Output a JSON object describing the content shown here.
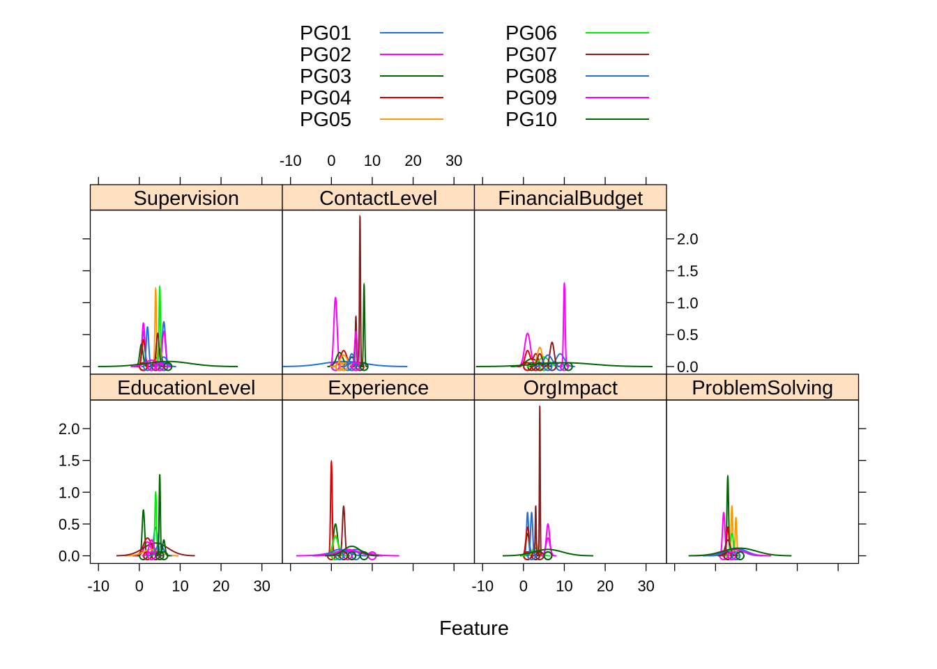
{
  "chart_data": {
    "type": "line",
    "xlabel": "Feature",
    "ylabel": "",
    "xlim": [
      -12,
      35
    ],
    "ylim": [
      -0.12,
      2.45
    ],
    "x_ticks": [
      -10,
      0,
      10,
      20,
      30
    ],
    "x_tick_labels": [
      "-10",
      "0",
      "10",
      "20",
      "30"
    ],
    "y_ticks": [
      0.0,
      0.5,
      1.0,
      1.5,
      2.0
    ],
    "y_tick_labels": [
      "0.0",
      "0.5",
      "1.0",
      "1.5",
      "2.0"
    ],
    "legend_position": "top",
    "series": [
      {
        "name": "PG01",
        "color": "#1f6fe0"
      },
      {
        "name": "PG02",
        "color": "#ff00ff"
      },
      {
        "name": "PG03",
        "color": "#006400"
      },
      {
        "name": "PG04",
        "color": "#dd0000"
      },
      {
        "name": "PG05",
        "color": "#ff9900"
      },
      {
        "name": "PG06",
        "color": "#00ee00"
      },
      {
        "name": "PG07",
        "color": "#8b1a1a"
      },
      {
        "name": "PG08",
        "color": "#1f6fe0"
      },
      {
        "name": "PG09",
        "color": "#ff00ff"
      },
      {
        "name": "PG10",
        "color": "#006400"
      }
    ],
    "panels": [
      {
        "name": "Supervision",
        "curves": [
          {
            "series": "PG01",
            "peaks": [
              [
                1,
                0.55,
                0.35
              ],
              [
                6,
                0.7,
                0.4
              ]
            ],
            "rug": [
              1,
              6
            ]
          },
          {
            "series": "PG02",
            "peaks": [
              [
                1,
                0.68,
                0.35
              ],
              [
                6,
                0.55,
                0.4
              ]
            ],
            "rug": [
              1,
              6
            ]
          },
          {
            "series": "PG03",
            "peaks": [
              [
                0.5,
                0.35,
                0.4
              ],
              [
                4,
                0.15,
                0.5
              ]
            ],
            "rug": [
              1,
              4
            ]
          },
          {
            "series": "PG04",
            "peaks": [
              [
                1,
                0.42,
                0.4
              ],
              [
                5,
                0.28,
                0.45
              ]
            ],
            "rug": [
              1,
              5
            ]
          },
          {
            "series": "PG05",
            "peaks": [
              [
                4,
                1.22,
                0.18
              ]
            ],
            "rug": [
              4
            ]
          },
          {
            "series": "PG06",
            "peaks": [
              [
                5,
                1.25,
                0.18
              ]
            ],
            "rug": [
              5
            ]
          },
          {
            "series": "PG07",
            "peaks": [
              [
                4.5,
                0.52,
                0.35
              ]
            ],
            "rug": [
              4,
              5
            ]
          },
          {
            "series": "PG08",
            "peaks": [
              [
                2,
                0.62,
                0.3
              ],
              [
                6,
                0.15,
                0.8
              ]
            ],
            "rug": [
              2,
              6
            ]
          },
          {
            "series": "PG09",
            "peaks": [
              [
                3,
                0.1,
                1.5
              ]
            ],
            "rug": [
              3,
              5
            ]
          },
          {
            "series": "PG10",
            "peaks": [
              [
                7,
                0.08,
                5.5
              ]
            ],
            "rug": [
              7
            ]
          }
        ]
      },
      {
        "name": "ContactLevel",
        "curves": [
          {
            "series": "PG01",
            "peaks": [
              [
                3,
                0.08,
                5
              ]
            ],
            "rug": [
              1,
              4
            ]
          },
          {
            "series": "PG02",
            "peaks": [
              [
                1,
                1.08,
                0.4
              ]
            ],
            "rug": [
              1
            ]
          },
          {
            "series": "PG03",
            "peaks": [
              [
                2,
                0.22,
                0.8
              ],
              [
                5,
                0.15,
                0.6
              ]
            ],
            "rug": [
              2,
              5
            ]
          },
          {
            "series": "PG04",
            "peaks": [
              [
                3,
                0.25,
                0.8
              ]
            ],
            "rug": [
              3
            ]
          },
          {
            "series": "PG05",
            "peaks": [
              [
                3,
                0.18,
                0.9
              ]
            ],
            "rug": [
              2,
              3
            ]
          },
          {
            "series": "PG06",
            "peaks": [
              [
                6,
                0.5,
                0.3
              ]
            ],
            "rug": [
              6
            ]
          },
          {
            "series": "PG07",
            "peaks": [
              [
                7,
                2.35,
                0.12
              ],
              [
                6,
                0.78,
                0.15
              ]
            ],
            "rug": [
              6,
              7
            ]
          },
          {
            "series": "PG08",
            "peaks": [
              [
                5,
                0.2,
                0.6
              ]
            ],
            "rug": [
              5
            ]
          },
          {
            "series": "PG09",
            "peaks": [
              [
                6,
                0.55,
                0.3
              ]
            ],
            "rug": [
              6
            ]
          },
          {
            "series": "PG10",
            "peaks": [
              [
                8,
                1.28,
                0.15
              ]
            ],
            "rug": [
              8
            ]
          }
        ]
      },
      {
        "name": "FinancialBudget",
        "curves": [
          {
            "series": "PG01",
            "peaks": [
              [
                9,
                0.2,
                1
              ]
            ],
            "rug": [
              9
            ]
          },
          {
            "series": "PG02",
            "peaks": [
              [
                1,
                0.52,
                0.7
              ]
            ],
            "rug": [
              1
            ]
          },
          {
            "series": "PG03",
            "peaks": [
              [
                2,
                0.12,
                1.5
              ]
            ],
            "rug": [
              2,
              4
            ]
          },
          {
            "series": "PG04",
            "peaks": [
              [
                1,
                0.25,
                0.6
              ],
              [
                3,
                0.2,
                0.6
              ]
            ],
            "rug": [
              1,
              3
            ]
          },
          {
            "series": "PG05",
            "peaks": [
              [
                4,
                0.3,
                0.6
              ]
            ],
            "rug": [
              4
            ]
          },
          {
            "series": "PG06",
            "peaks": [
              [
                5,
                0.15,
                1.2
              ]
            ],
            "rug": [
              5
            ]
          },
          {
            "series": "PG07",
            "peaks": [
              [
                7,
                0.38,
                0.5
              ],
              [
                4,
                0.2,
                0.6
              ]
            ],
            "rug": [
              4,
              7
            ]
          },
          {
            "series": "PG08",
            "peaks": [
              [
                6,
                0.18,
                1
              ]
            ],
            "rug": [
              6
            ]
          },
          {
            "series": "PG09",
            "peaks": [
              [
                10,
                1.3,
                0.2
              ]
            ],
            "rug": [
              10
            ]
          },
          {
            "series": "PG10",
            "peaks": [
              [
                10,
                0.06,
                7
              ]
            ],
            "rug": [
              11
            ]
          }
        ]
      },
      {
        "name": "EducationLevel",
        "curves": [
          {
            "series": "PG01",
            "peaks": [
              [
                4,
                0.45,
                0.5
              ]
            ],
            "rug": [
              4
            ]
          },
          {
            "series": "PG02",
            "peaks": [
              [
                2,
                0.22,
                0.8
              ]
            ],
            "rug": [
              2
            ]
          },
          {
            "series": "PG03",
            "peaks": [
              [
                1,
                0.72,
                0.3
              ]
            ],
            "rug": [
              1
            ]
          },
          {
            "series": "PG04",
            "peaks": [
              [
                2,
                0.28,
                1
              ]
            ],
            "rug": [
              2
            ]
          },
          {
            "series": "PG05",
            "peaks": [
              [
                3,
                0.1,
                2
              ]
            ],
            "rug": [
              3
            ]
          },
          {
            "series": "PG06",
            "peaks": [
              [
                4,
                1.0,
                0.2
              ]
            ],
            "rug": [
              4
            ]
          },
          {
            "series": "PG07",
            "peaks": [
              [
                4,
                0.2,
                3
              ]
            ],
            "rug": [
              4
            ]
          },
          {
            "series": "PG08",
            "peaks": [
              [
                5,
                0.2,
                0.8
              ]
            ],
            "rug": [
              5
            ]
          },
          {
            "series": "PG09",
            "peaks": [
              [
                3,
                0.25,
                0.6
              ]
            ],
            "rug": [
              3
            ]
          },
          {
            "series": "PG10",
            "peaks": [
              [
                5,
                1.28,
                0.15
              ],
              [
                6,
                0.25,
                0.3
              ]
            ],
            "rug": [
              5,
              6
            ]
          }
        ]
      },
      {
        "name": "Experience",
        "curves": [
          {
            "series": "PG01",
            "peaks": [
              [
                6,
                0.1,
                2
              ]
            ],
            "rug": [
              6
            ]
          },
          {
            "series": "PG02",
            "peaks": [
              [
                4,
                0.08,
                4
              ]
            ],
            "rug": [
              4,
              10
            ]
          },
          {
            "series": "PG03",
            "peaks": [
              [
                1,
                0.5,
                0.5
              ]
            ],
            "rug": [
              1
            ]
          },
          {
            "series": "PG04",
            "peaks": [
              [
                0,
                1.48,
                0.2
              ]
            ],
            "rug": [
              0
            ]
          },
          {
            "series": "PG05",
            "peaks": [
              [
                1,
                0.32,
                0.6
              ]
            ],
            "rug": [
              1
            ]
          },
          {
            "series": "PG06",
            "peaks": [
              [
                1,
                0.3,
                0.7
              ]
            ],
            "rug": [
              1,
              3
            ]
          },
          {
            "series": "PG07",
            "peaks": [
              [
                3,
                0.78,
                0.3
              ]
            ],
            "rug": [
              3
            ]
          },
          {
            "series": "PG08",
            "peaks": [
              [
                2,
                0.1,
                2
              ]
            ],
            "rug": [
              2
            ]
          },
          {
            "series": "PG09",
            "peaks": [
              [
                4,
                0.1,
                2.5
              ]
            ],
            "rug": [
              5
            ]
          },
          {
            "series": "PG10",
            "peaks": [
              [
                5,
                0.15,
                2
              ]
            ],
            "rug": [
              5,
              8
            ]
          }
        ]
      },
      {
        "name": "OrgImpact",
        "curves": [
          {
            "series": "PG01",
            "peaks": [
              [
                1,
                0.68,
                0.25
              ]
            ],
            "rug": [
              1
            ]
          },
          {
            "series": "PG02",
            "peaks": [
              [
                6,
                0.28,
                0.5
              ]
            ],
            "rug": [
              6
            ]
          },
          {
            "series": "PG03",
            "peaks": [
              [
                1,
                0.35,
                0.4
              ]
            ],
            "rug": [
              1
            ]
          },
          {
            "series": "PG04",
            "peaks": [
              [
                1,
                0.45,
                0.4
              ]
            ],
            "rug": [
              1,
              3
            ]
          },
          {
            "series": "PG05",
            "peaks": [
              [
                3,
                0.2,
                0.6
              ]
            ],
            "rug": [
              3
            ]
          },
          {
            "series": "PG06",
            "peaks": [
              [
                3,
                0.12,
                1
              ]
            ],
            "rug": [
              3
            ]
          },
          {
            "series": "PG07",
            "peaks": [
              [
                4,
                2.35,
                0.1
              ],
              [
                3,
                0.78,
                0.12
              ]
            ],
            "rug": [
              3,
              4
            ]
          },
          {
            "series": "PG08",
            "peaks": [
              [
                2,
                0.68,
                0.25
              ]
            ],
            "rug": [
              2
            ]
          },
          {
            "series": "PG09",
            "peaks": [
              [
                6,
                0.5,
                0.4
              ]
            ],
            "rug": [
              6
            ]
          },
          {
            "series": "PG10",
            "peaks": [
              [
                6,
                0.1,
                3.5
              ]
            ],
            "rug": [
              6
            ]
          }
        ]
      },
      {
        "name": "ProblemSolving",
        "curves": [
          {
            "series": "PG01",
            "peaks": [
              [
                5,
                0.1,
                2
              ]
            ],
            "rug": [
              5
            ]
          },
          {
            "series": "PG02",
            "peaks": [
              [
                2,
                0.68,
                0.3
              ]
            ],
            "rug": [
              2
            ]
          },
          {
            "series": "PG03",
            "peaks": [
              [
                3,
                1.25,
                0.2
              ]
            ],
            "rug": [
              3
            ]
          },
          {
            "series": "PG04",
            "peaks": [
              [
                3,
                0.45,
                0.3
              ]
            ],
            "rug": [
              3
            ]
          },
          {
            "series": "PG05",
            "peaks": [
              [
                4,
                0.78,
                0.2
              ],
              [
                5,
                0.6,
                0.2
              ]
            ],
            "rug": [
              4,
              5
            ]
          },
          {
            "series": "PG06",
            "peaks": [
              [
                4,
                0.35,
                0.4
              ]
            ],
            "rug": [
              4
            ]
          },
          {
            "series": "PG07",
            "peaks": [
              [
                3,
                0.25,
                0.6
              ]
            ],
            "rug": [
              3
            ]
          },
          {
            "series": "PG08",
            "peaks": [
              [
                5,
                0.12,
                2.5
              ]
            ],
            "rug": [
              5
            ]
          },
          {
            "series": "PG09",
            "peaks": [
              [
                4,
                0.1,
                3
              ]
            ],
            "rug": [
              4
            ]
          },
          {
            "series": "PG10",
            "peaks": [
              [
                6,
                0.12,
                4
              ]
            ],
            "rug": [
              6
            ]
          }
        ]
      }
    ]
  }
}
